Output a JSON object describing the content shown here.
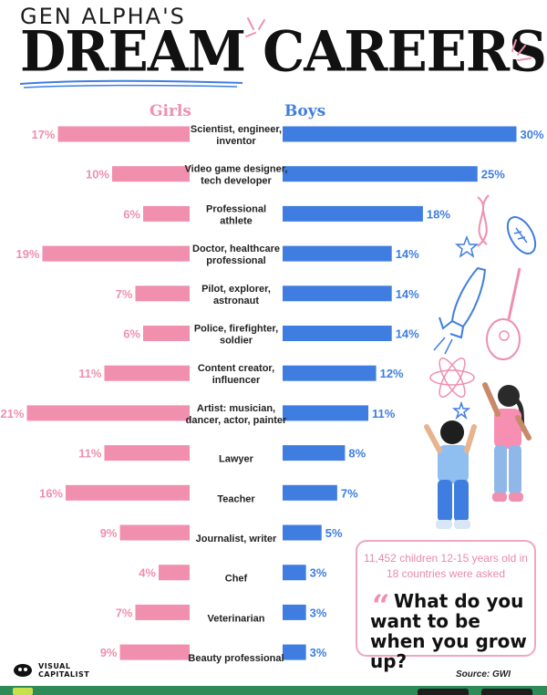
{
  "title": {
    "line1": "GEN ALPHA'S",
    "line2": "DREAM CAREERS"
  },
  "headers": {
    "girls": "Girls",
    "boys": "Boys"
  },
  "colors": {
    "girls": "#f08fae",
    "boys": "#3f7ee0",
    "accent": "#f08fae",
    "footer": "#2e8b57"
  },
  "chart_data": {
    "type": "bar",
    "orientation": "horizontal-diverging",
    "categories": [
      "Scientist, engineer,\ninventor",
      "Video game designer,\ntech developer",
      "Professional\nathlete",
      "Doctor, healthcare\nprofessional",
      "Pilot, explorer,\nastronaut",
      "Police, firefighter,\nsoldier",
      "Content creator,\ninfluencer",
      "Artist: musician,\ndancer, actor, painter",
      "Lawyer",
      "Teacher",
      "Journalist, writer",
      "Chef",
      "Veterinarian",
      "Beauty professional"
    ],
    "series": [
      {
        "name": "Girls",
        "values": [
          17,
          10,
          6,
          19,
          7,
          6,
          11,
          21,
          11,
          16,
          9,
          4,
          7,
          9
        ]
      },
      {
        "name": "Boys",
        "values": [
          30,
          25,
          18,
          14,
          14,
          14,
          12,
          11,
          8,
          7,
          5,
          3,
          3,
          3
        ]
      }
    ],
    "unit": "%",
    "title": "GEN ALPHA'S DREAM CAREERS"
  },
  "info": {
    "subtitle": "11,452 children 12-15 years old in 18 countries were asked",
    "question": "What do you want to be when you grow up?"
  },
  "logo": {
    "line1": "VISUAL",
    "line2": "CAPITALIST"
  },
  "source": "Source: GWI"
}
